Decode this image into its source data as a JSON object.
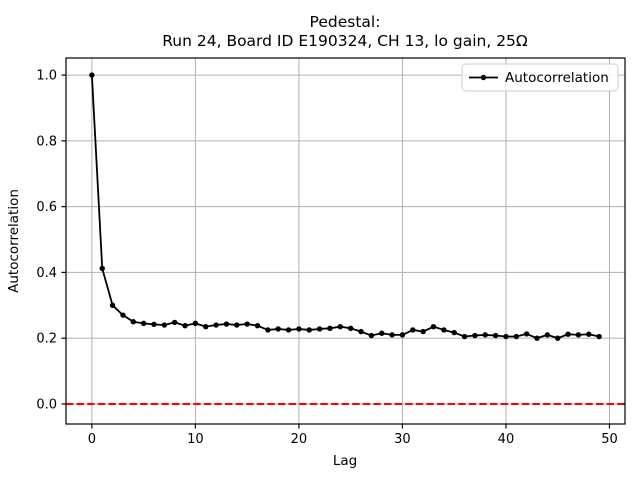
{
  "figure": {
    "title_line1": "Pedestal:",
    "title_line2": "Run 24, Board ID E190324, CH 13, lo gain, 25Ω",
    "xlabel": "Lag",
    "ylabel": "Autocorrelation",
    "legend": {
      "label": "Autocorrelation"
    }
  },
  "chart_data": {
    "type": "line",
    "title": "Pedestal:\nRun 24, Board ID E190324, CH 13, lo gain, 25Ω",
    "xlabel": "Lag",
    "ylabel": "Autocorrelation",
    "xlim": [
      -2.5,
      51.5
    ],
    "ylim": [
      -0.061,
      1.052
    ],
    "xticks": [
      0,
      10,
      20,
      30,
      40,
      50
    ],
    "yticks": [
      0.0,
      0.2,
      0.4,
      0.6,
      0.8,
      1.0
    ],
    "grid": true,
    "grid_color": "#b0b0b0",
    "legend_position": "upper right",
    "series": [
      {
        "name": "Autocorrelation",
        "color": "#000000",
        "marker": "circle",
        "x": [
          0,
          1,
          2,
          3,
          4,
          5,
          6,
          7,
          8,
          9,
          10,
          11,
          12,
          13,
          14,
          15,
          16,
          17,
          18,
          19,
          20,
          21,
          22,
          23,
          24,
          25,
          26,
          27,
          28,
          29,
          30,
          31,
          32,
          33,
          34,
          35,
          36,
          37,
          38,
          39,
          40,
          41,
          42,
          43,
          44,
          45,
          46,
          47,
          48,
          49
        ],
        "y": [
          1.0,
          0.412,
          0.3,
          0.27,
          0.25,
          0.245,
          0.242,
          0.24,
          0.248,
          0.238,
          0.245,
          0.235,
          0.24,
          0.243,
          0.24,
          0.243,
          0.238,
          0.225,
          0.228,
          0.225,
          0.228,
          0.225,
          0.228,
          0.23,
          0.235,
          0.23,
          0.22,
          0.208,
          0.215,
          0.21,
          0.21,
          0.225,
          0.22,
          0.235,
          0.225,
          0.217,
          0.205,
          0.208,
          0.21,
          0.208,
          0.205,
          0.205,
          0.213,
          0.2,
          0.21,
          0.2,
          0.212,
          0.21,
          0.212,
          0.205
        ]
      }
    ],
    "reference_lines": [
      {
        "axis": "y",
        "value": 0.0,
        "color": "#ff0000",
        "style": "dashed"
      }
    ]
  }
}
